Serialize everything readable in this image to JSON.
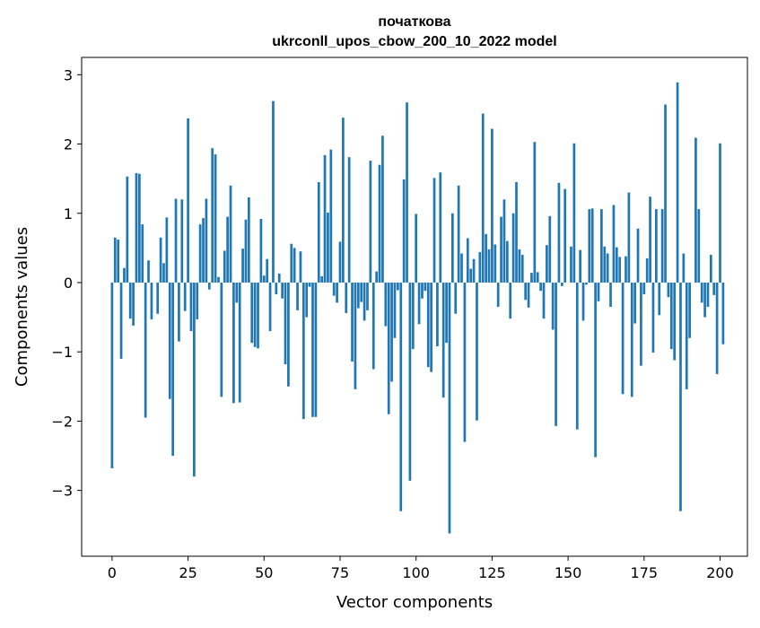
{
  "chart_data": {
    "type": "bar",
    "title_line1": "початкова",
    "title_line2": "ukrconll_upos_cbow_200_10_2022 model",
    "xlabel": "Vector components",
    "ylabel": "Components values",
    "xlim": [
      -10,
      209
    ],
    "ylim": [
      -3.95,
      3.25
    ],
    "xticks": [
      0,
      25,
      50,
      75,
      100,
      125,
      150,
      175,
      200
    ],
    "yticks": [
      -3,
      -2,
      -1,
      0,
      1,
      2,
      3
    ],
    "xtick_labels": [
      "0",
      "25",
      "50",
      "75",
      "100",
      "125",
      "150",
      "175",
      "200"
    ],
    "ytick_labels": [
      "−3",
      "−2",
      "−1",
      "0",
      "1",
      "2",
      "3"
    ],
    "bar_color": "#1f77b4",
    "values": [
      -2.68,
      0.65,
      0.62,
      -1.1,
      0.21,
      1.53,
      -0.52,
      -0.62,
      1.58,
      1.57,
      0.84,
      -1.95,
      0.32,
      -0.53,
      0.0,
      -0.45,
      0.65,
      0.28,
      0.94,
      -1.68,
      -2.5,
      1.21,
      -0.85,
      1.2,
      -0.41,
      2.37,
      -0.7,
      -2.8,
      -0.53,
      0.84,
      0.93,
      1.21,
      -0.1,
      1.94,
      1.85,
      0.08,
      -1.65,
      0.46,
      0.95,
      1.4,
      -1.74,
      -0.29,
      -1.73,
      0.49,
      0.91,
      1.23,
      -0.87,
      -0.93,
      -0.95,
      0.92,
      0.1,
      0.34,
      -0.7,
      2.62,
      -0.17,
      0.13,
      -0.23,
      -1.18,
      -1.5,
      0.56,
      0.5,
      -0.4,
      0.45,
      -1.97,
      -0.5,
      -0.06,
      -1.94,
      -1.94,
      1.45,
      0.09,
      1.84,
      1.01,
      1.92,
      -0.19,
      -0.29,
      0.59,
      2.38,
      -0.44,
      1.81,
      -1.14,
      -1.54,
      -0.37,
      -0.28,
      -0.55,
      -0.4,
      1.76,
      -1.25,
      0.16,
      1.7,
      2.12,
      -0.63,
      -1.9,
      -1.43,
      -0.8,
      -0.11,
      -3.3,
      1.49,
      2.6,
      -2.86,
      -0.96,
      0.99,
      -0.6,
      -0.23,
      -0.12,
      -1.22,
      -1.29,
      1.51,
      -0.92,
      1.59,
      -1.66,
      -0.87,
      -3.62,
      1.0,
      -0.45,
      1.4,
      0.42,
      -2.3,
      0.64,
      0.2,
      0.34,
      -1.99,
      0.44,
      2.44,
      0.7,
      0.48,
      2.22,
      0.55,
      -0.35,
      0.95,
      1.2,
      0.6,
      -0.52,
      1.0,
      1.45,
      0.48,
      0.4,
      -0.25,
      -0.36,
      0.14,
      2.03,
      0.15,
      -0.12,
      -0.52,
      0.54,
      0.96,
      -0.68,
      -2.07,
      1.44,
      -0.05,
      1.35,
      0.0,
      0.52,
      2.01,
      -2.12,
      0.47,
      -0.55,
      -0.03,
      1.06,
      1.07,
      -2.52,
      -0.27,
      1.06,
      0.52,
      0.42,
      -0.35,
      1.12,
      0.51,
      0.37,
      -1.61,
      0.38,
      1.3,
      -1.65,
      -0.59,
      0.78,
      -1.2,
      -0.17,
      0.35,
      1.24,
      -1.01,
      1.06,
      -0.47,
      1.06,
      2.57,
      -0.21,
      -0.96,
      -1.12,
      2.89,
      -3.3,
      0.42,
      -1.54,
      -0.8,
      0.0,
      2.09,
      1.06,
      -0.29,
      -0.5,
      -0.35,
      0.4,
      -0.18,
      -1.32,
      2.01,
      -0.89
    ]
  }
}
